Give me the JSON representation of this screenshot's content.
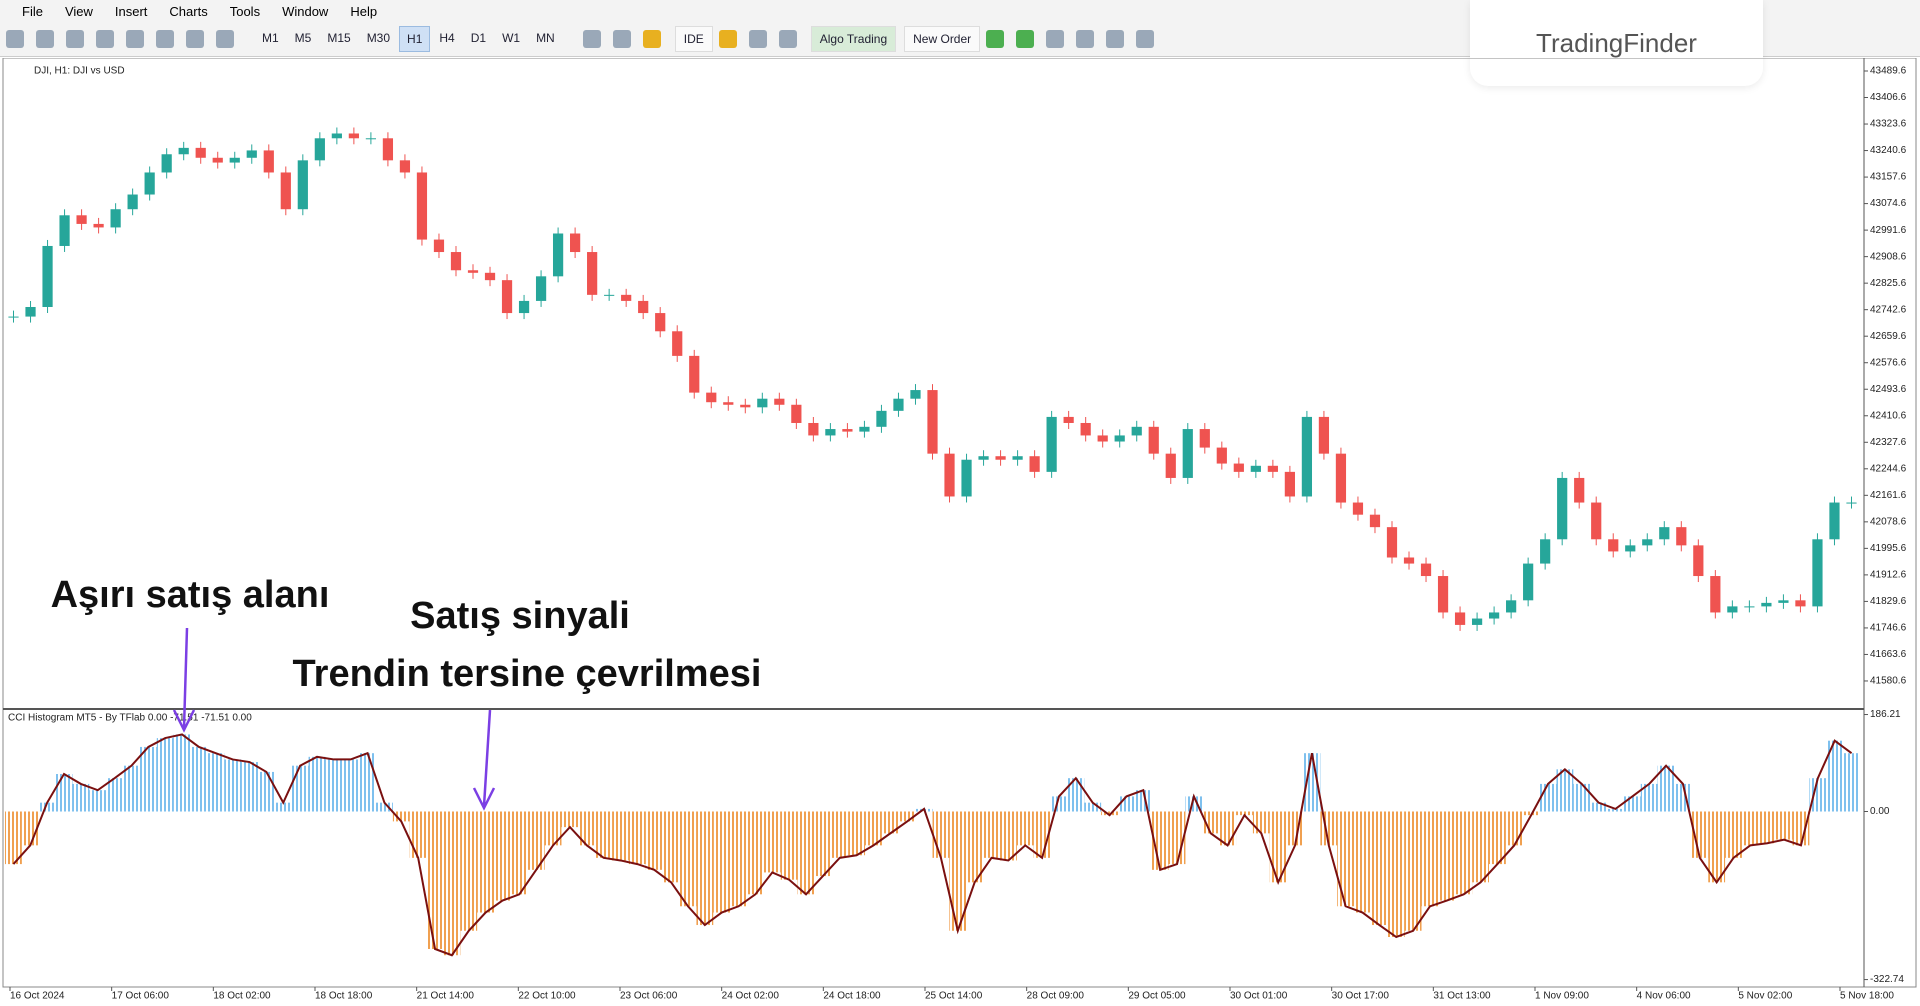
{
  "menu": [
    "File",
    "View",
    "Insert",
    "Charts",
    "Tools",
    "Window",
    "Help"
  ],
  "toolbar": {
    "timeframes": [
      "M1",
      "M5",
      "M15",
      "M30",
      "H1",
      "H4",
      "D1",
      "W1",
      "MN"
    ],
    "active": "H1",
    "ide": "IDE",
    "algo": "Algo Trading",
    "order": "New Order"
  },
  "logo": "TradingFinder",
  "chart_data": [
    {
      "type": "candlestick",
      "title": "DJI, H1:  DJI vs USD",
      "up_color": "#26a69a",
      "down_color": "#ef5350",
      "values": [
        42721,
        42751,
        42942,
        43038,
        43011,
        43000,
        43057,
        43103,
        43172,
        43229,
        43249,
        43218,
        43203,
        43218,
        43241,
        43172,
        43057,
        43210,
        43279,
        43294,
        43279,
        43279,
        43210,
        43172,
        42962,
        42923,
        42866,
        42858,
        42835,
        42732,
        42770,
        42847,
        42981,
        42923,
        42789,
        42789,
        42770,
        42732,
        42675,
        42598,
        42483,
        42453,
        42445,
        42437,
        42464,
        42445,
        42388,
        42349,
        42369,
        42361,
        42376,
        42426,
        42464,
        42491,
        42292,
        42158,
        42273,
        42284,
        42273,
        42284,
        42235,
        42407,
        42388,
        42349,
        42330,
        42349,
        42376,
        42292,
        42216,
        42369,
        42311,
        42261,
        42235,
        42254,
        42235,
        42158,
        42407,
        42292,
        42139,
        42101,
        42062,
        41967,
        41948,
        41909,
        41795,
        41756,
        41776,
        41795,
        41833,
        41948,
        42024,
        42216,
        42139,
        42024,
        41986,
        42005,
        42024,
        42062,
        42005,
        41909,
        41795,
        41814,
        41814,
        41825,
        41833,
        41814,
        42024,
        42139,
        42139
      ],
      "ylim": [
        41496,
        43524
      ],
      "yticks": [
        43489.6,
        43406.6,
        43323.6,
        43240.6,
        43157.6,
        43074.6,
        42991.6,
        42908.6,
        42825.6,
        42742.6,
        42659.6,
        42576.6,
        42493.6,
        42410.6,
        42327.6,
        42244.6,
        42161.6,
        42078.6,
        41995.6,
        41912.6,
        41829.6,
        41746.6,
        41663.6,
        41580.6
      ]
    },
    {
      "type": "histogram",
      "title": "CCI Histogram MT5 - By TFlab 0.00 -71.51 -71.51 0.00",
      "up_color": "#7ec0ee",
      "down_color": "#f0a050",
      "line_color": "#7a1010",
      "values": [
        -101,
        -65,
        17,
        72,
        53,
        41,
        64,
        88,
        124,
        141,
        148,
        124,
        112,
        100,
        95,
        76,
        17,
        88,
        105,
        100,
        100,
        112,
        17,
        -19,
        -89,
        -264,
        -276,
        -229,
        -194,
        -171,
        -159,
        -112,
        -65,
        -30,
        -65,
        -89,
        -94,
        -101,
        -112,
        -136,
        -182,
        -218,
        -194,
        -182,
        -159,
        -117,
        -131,
        -159,
        -124,
        -89,
        -84,
        -65,
        -42,
        -19,
        5,
        -89,
        -229,
        -136,
        -89,
        -94,
        -65,
        -89,
        29,
        64,
        17,
        -7,
        29,
        41,
        -112,
        -101,
        29,
        -42,
        -65,
        -7,
        -42,
        -136,
        -65,
        112,
        -65,
        -182,
        -194,
        -218,
        -241,
        -229,
        -182,
        -171,
        -159,
        -136,
        -101,
        -65,
        -7,
        53,
        81,
        53,
        17,
        5,
        29,
        53,
        88,
        53,
        -89,
        -136,
        -89,
        -65,
        -61,
        -54,
        -65,
        64,
        136,
        112
      ],
      "ylim": [
        -337,
        193
      ],
      "yticks": [
        {
          "value": 186.21,
          "label": "186.21"
        },
        {
          "value": 0,
          "label": "0.00"
        },
        {
          "value": -322.74,
          "label": "-322.74"
        }
      ]
    }
  ],
  "time_labels": [
    "16 Oct 2024",
    "17 Oct 06:00",
    "18 Oct 02:00",
    "18 Oct 18:00",
    "21 Oct 14:00",
    "22 Oct 10:00",
    "23 Oct 06:00",
    "24 Oct 02:00",
    "24 Oct 18:00",
    "25 Oct 14:00",
    "28 Oct 09:00",
    "29 Oct 05:00",
    "30 Oct 01:00",
    "30 Oct 17:00",
    "31 Oct 13:00",
    "1 Nov 09:00",
    "4 Nov 06:00",
    "5 Nov 02:00",
    "5 Nov 18:00"
  ],
  "annotations": [
    "Aşırı satış alanı",
    "Satış sinyali",
    "Trendin tersine çevrilmesi"
  ]
}
